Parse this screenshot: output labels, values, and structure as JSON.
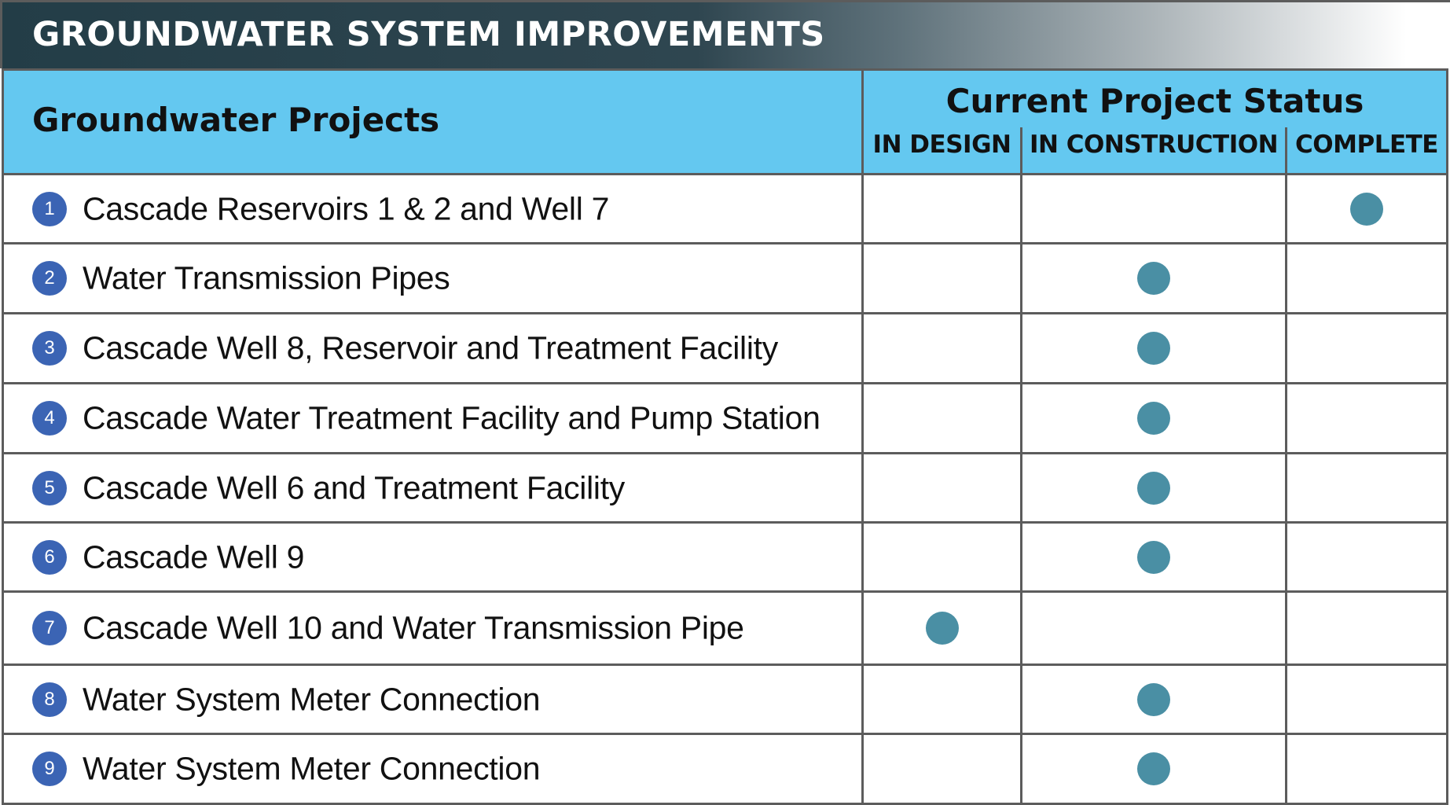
{
  "title": "GROUNDWATER SYSTEM IMPROVEMENTS",
  "header": {
    "projects_label": "Groundwater Projects",
    "status_label": "Current Project Status",
    "columns": [
      "IN DESIGN",
      "IN CONSTRUCTION",
      "COMPLETE"
    ]
  },
  "colors": {
    "dot": "#4a8fa4",
    "badge": "#3b64b4",
    "header_bg": "#64c8f0"
  },
  "projects": [
    {
      "number": "1",
      "name": "Cascade Reservoirs 1 & 2  and Well 7",
      "status": "COMPLETE"
    },
    {
      "number": "2",
      "name": "Water Transmission Pipes",
      "status": "IN CONSTRUCTION"
    },
    {
      "number": "3",
      "name": "Cascade Well 8, Reservoir and Treatment Facility",
      "status": "IN CONSTRUCTION"
    },
    {
      "number": "4",
      "name": "Cascade Water Treatment Facility and Pump Station",
      "status": "IN CONSTRUCTION"
    },
    {
      "number": "5",
      "name": "Cascade Well 6 and Treatment Facility",
      "status": "IN CONSTRUCTION"
    },
    {
      "number": "6",
      "name": "Cascade Well 9",
      "status": "IN CONSTRUCTION"
    },
    {
      "number": "7",
      "name": "Cascade Well 10 and Water Transmission Pipe",
      "status": "IN DESIGN"
    },
    {
      "number": "8",
      "name": "Water System Meter Connection",
      "status": "IN CONSTRUCTION"
    },
    {
      "number": "9",
      "name": "Water System Meter Connection",
      "status": "IN CONSTRUCTION"
    }
  ]
}
